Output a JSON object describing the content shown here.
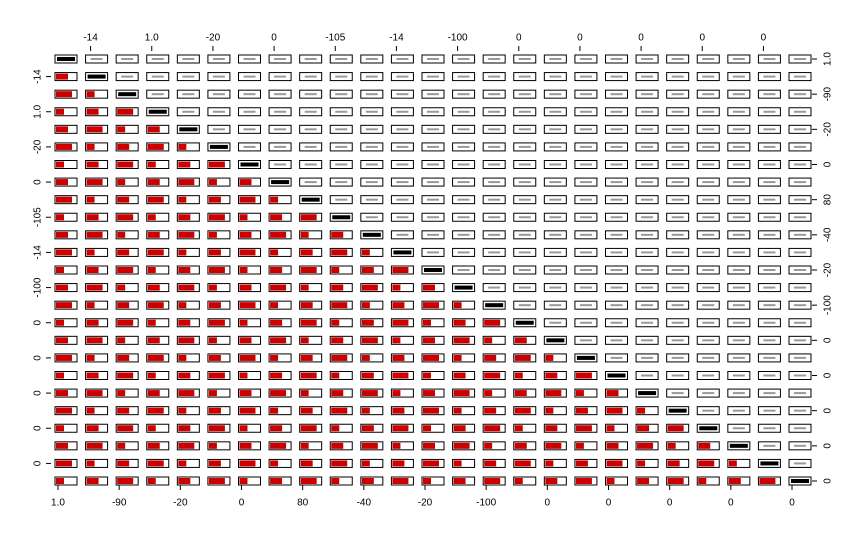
{
  "chart_data": {
    "type": "pairs",
    "ticks": [
      {
        "value": 1,
        "label": "1.0"
      },
      -14,
      -90,
      {
        "value": 1,
        "label": "1.0"
      },
      -20,
      -20,
      0,
      0,
      80,
      -105,
      -40,
      -14,
      -20,
      -100,
      -100,
      0,
      0,
      0,
      0,
      0,
      0,
      0,
      0,
      0,
      0
    ],
    "lower_color": "#cc0000"
  }
}
